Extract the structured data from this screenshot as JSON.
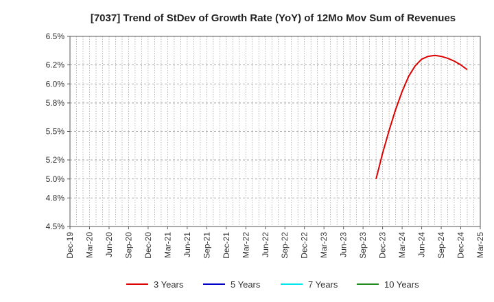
{
  "chart_data": {
    "type": "line",
    "title": "[7037]  Trend of StDev of Growth Rate (YoY) of 12Mo Mov Sum of Revenues",
    "xlabel": "",
    "ylabel": "",
    "x_ticks": [
      "Dec-19",
      "Mar-20",
      "Jun-20",
      "Sep-20",
      "Dec-20",
      "Mar-21",
      "Jun-21",
      "Sep-21",
      "Dec-21",
      "Mar-22",
      "Jun-22",
      "Sep-22",
      "Dec-22",
      "Mar-23",
      "Jun-23",
      "Sep-23",
      "Dec-23",
      "Mar-24",
      "Jun-24",
      "Sep-24",
      "Dec-24",
      "Mar-25"
    ],
    "y_ticks": [
      "4.5%",
      "4.8%",
      "5.0%",
      "5.2%",
      "5.5%",
      "5.8%",
      "6.0%",
      "6.2%",
      "6.5%"
    ],
    "ylim": [
      4.5,
      6.5
    ],
    "grid": true,
    "legend_position": "bottom",
    "series": [
      {
        "name": "3 Years",
        "color": "#dd0000",
        "points": [
          [
            "Nov-23",
            5.0
          ],
          [
            "Dec-23",
            5.27
          ],
          [
            "Jan-24",
            5.51
          ],
          [
            "Feb-24",
            5.73
          ],
          [
            "Mar-24",
            5.92
          ],
          [
            "Apr-24",
            6.08
          ],
          [
            "May-24",
            6.19
          ],
          [
            "Jun-24",
            6.26
          ],
          [
            "Jul-24",
            6.29
          ],
          [
            "Aug-24",
            6.3
          ],
          [
            "Sep-24",
            6.29
          ],
          [
            "Oct-24",
            6.27
          ],
          [
            "Nov-24",
            6.24
          ],
          [
            "Dec-24",
            6.2
          ],
          [
            "Jan-25",
            6.15
          ]
        ]
      },
      {
        "name": "5 Years",
        "color": "#0000cc",
        "points": []
      },
      {
        "name": "7 Years",
        "color": "#00e5ee",
        "points": []
      },
      {
        "name": "10 Years",
        "color": "#228b22",
        "points": []
      }
    ]
  }
}
